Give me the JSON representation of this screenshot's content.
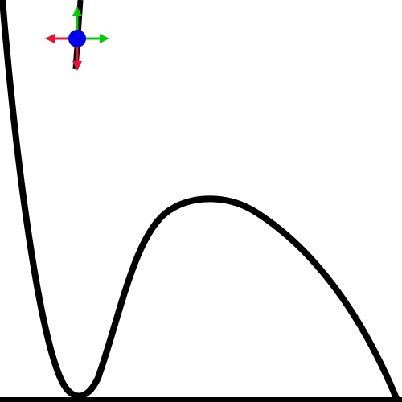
{
  "canvas": {
    "background_color": "#ffffff",
    "curve_color": "#000000",
    "baseline_color": "#000000"
  },
  "gizmo": {
    "handle_color": "#0000ee",
    "arrow_up_color": "#00cc00",
    "arrow_right_color": "#00cc00",
    "arrow_left_color": "#ee1133",
    "arrow_down_color": "#ee1133",
    "icon": "move-gizmo-icon"
  }
}
